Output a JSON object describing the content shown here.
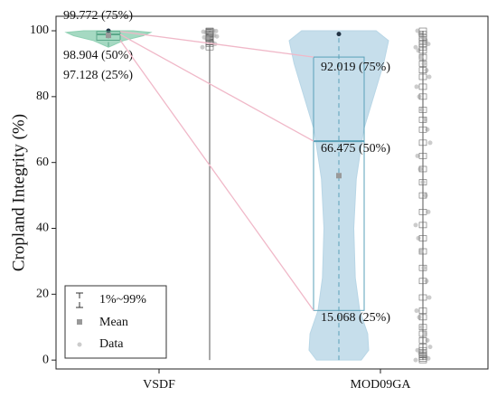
{
  "chart_data": {
    "type": "violin-box",
    "y_label": "Cropland Integrity (%)",
    "ylim": [
      -2.7,
      104.4
    ],
    "yticks": [
      0,
      20,
      40,
      60,
      80,
      100
    ],
    "legend": {
      "whisker": "1%~99%",
      "mean": "Mean",
      "data": "Data"
    },
    "series": [
      {
        "name": "VSDF",
        "violin_color": "#8fd0b3",
        "box_color": "#5aa88a",
        "q1": 97.128,
        "median": 98.904,
        "q3": 99.772,
        "mean": 98.6,
        "whisker_low": 95.2,
        "whisker_high": 100,
        "strip_low": 0,
        "strip_high": 100,
        "quartile_labels": [
          "97.128 (25%)",
          "98.904 (50%)",
          "99.772 (75%)"
        ],
        "density_y": [
          95,
          97,
          98.5,
          99.5,
          100
        ],
        "density": [
          0,
          0.3,
          0.7,
          0.85,
          0.5
        ],
        "points": [
          95,
          96,
          96.5,
          97,
          97.5,
          98,
          98.3,
          98.6,
          99,
          99.2,
          99.5,
          99.7,
          99.9,
          100,
          98.9,
          97.8
        ]
      },
      {
        "name": "MOD09GA",
        "violin_color": "#b8d6e6",
        "box_color": "#5aa0b8",
        "q1": 15.068,
        "median": 66.475,
        "q3": 92.019,
        "mean": 56,
        "whisker_low": 0,
        "whisker_high": 99,
        "strip_low": 0,
        "strip_high": 100,
        "quartile_labels": [
          "15.068 (25%)",
          "66.475 (50%)",
          "92.019 (75%)"
        ],
        "density_y": [
          0,
          3,
          8,
          15,
          25,
          40,
          55,
          70,
          80,
          90,
          97,
          100
        ],
        "density": [
          0.45,
          0.6,
          0.58,
          0.42,
          0.33,
          0.3,
          0.35,
          0.5,
          0.7,
          0.9,
          1.0,
          0.75
        ],
        "points": [
          0,
          0.5,
          1,
          1.5,
          2,
          3,
          4,
          6,
          8,
          10,
          13,
          15,
          19,
          24,
          28,
          33,
          37,
          41,
          45,
          50,
          54,
          58,
          62,
          66,
          70,
          73,
          76,
          80,
          83,
          86,
          88,
          90,
          92,
          94,
          95,
          96,
          97,
          98,
          99,
          100
        ]
      }
    ]
  }
}
